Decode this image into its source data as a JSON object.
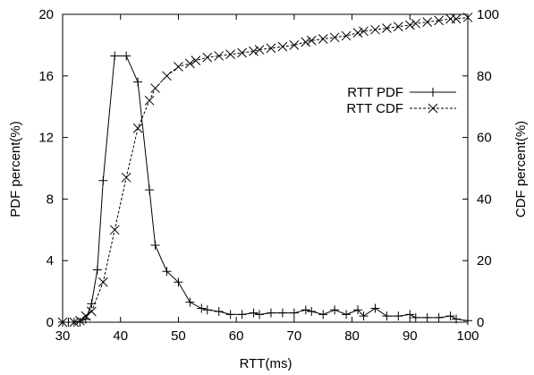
{
  "chart_data": {
    "type": "line",
    "title": "",
    "xlabel": "RTT(ms)",
    "ylabel": "PDF percent(%)",
    "y2label": "CDF percent(%)",
    "xlim": [
      30,
      100
    ],
    "ylim": [
      0,
      20
    ],
    "y2lim": [
      0,
      100
    ],
    "xticks": [
      30,
      40,
      50,
      60,
      70,
      80,
      90,
      100
    ],
    "yticks": [
      0,
      4,
      8,
      12,
      16,
      20
    ],
    "y2ticks": [
      0,
      20,
      40,
      60,
      80,
      100
    ],
    "grid": false,
    "legend_position": "right",
    "series": [
      {
        "name": "RTT PDF",
        "axis": "left",
        "marker": "plus",
        "line": "solid",
        "color": "#000000",
        "x": [
          30,
          31,
          32,
          33,
          34,
          35,
          36,
          37,
          39,
          41,
          43,
          45,
          46,
          48,
          50,
          52,
          54,
          55,
          57,
          59,
          61,
          63,
          64,
          66,
          68,
          70,
          72,
          73,
          75,
          77,
          79,
          81,
          82,
          84,
          86,
          88,
          90,
          91,
          93,
          95,
          97,
          98,
          100
        ],
        "values": [
          0,
          0,
          0,
          0,
          0.2,
          1.2,
          3.4,
          9.2,
          17.3,
          17.3,
          15.6,
          8.6,
          5.0,
          3.3,
          2.6,
          1.3,
          0.9,
          0.8,
          0.7,
          0.5,
          0.5,
          0.6,
          0.5,
          0.6,
          0.6,
          0.6,
          0.8,
          0.7,
          0.5,
          0.8,
          0.5,
          0.8,
          0.4,
          0.9,
          0.4,
          0.4,
          0.5,
          0.3,
          0.3,
          0.3,
          0.4,
          0.2,
          0.1
        ]
      },
      {
        "name": "RTT CDF",
        "axis": "right",
        "marker": "x",
        "line": "dashed",
        "color": "#000000",
        "x": [
          30,
          32,
          33,
          34,
          35,
          37,
          39,
          41,
          43,
          45,
          46,
          48,
          50,
          52,
          53,
          55,
          57,
          59,
          61,
          63,
          64,
          66,
          68,
          70,
          72,
          73,
          75,
          77,
          79,
          81,
          82,
          84,
          86,
          88,
          90,
          91,
          93,
          95,
          97,
          98,
          100
        ],
        "values": [
          0,
          0,
          0.5,
          2,
          3.5,
          13,
          30,
          47,
          63,
          72,
          76,
          80,
          83,
          84,
          85,
          86,
          86.5,
          87,
          87.5,
          88,
          88.5,
          89,
          89.5,
          90,
          91,
          91.5,
          92,
          92.5,
          93,
          94,
          94.5,
          95,
          95.5,
          96,
          96.5,
          97,
          97.5,
          98,
          98.5,
          98.5,
          99
        ]
      }
    ]
  }
}
